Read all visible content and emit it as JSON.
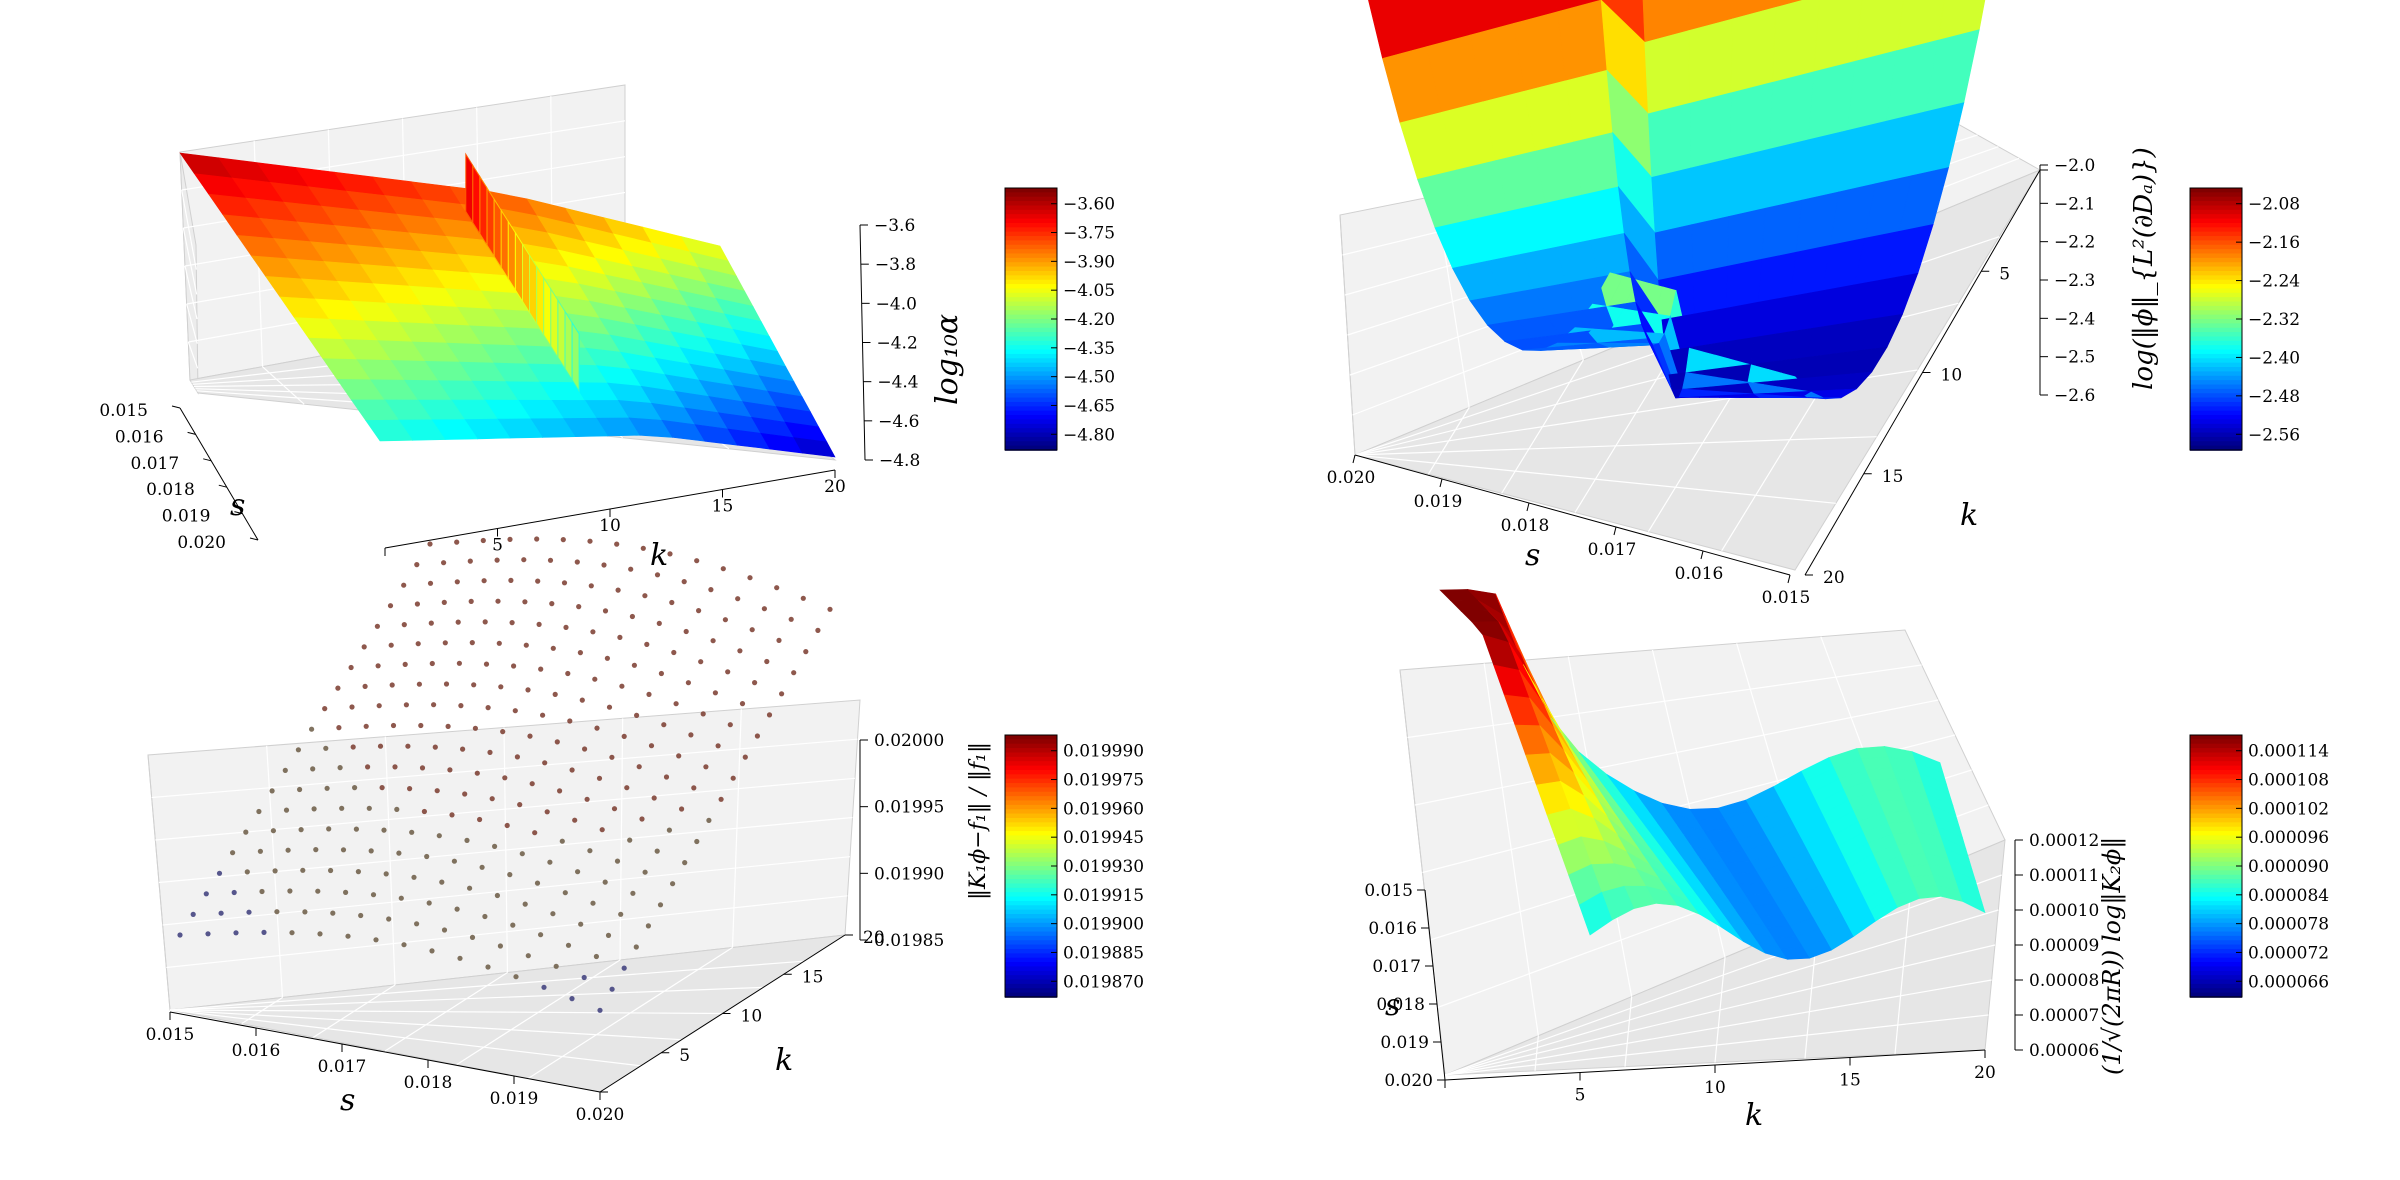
{
  "figure": {
    "layout": "2x2 grid of 3D plots with colorbars"
  },
  "chart_data": [
    {
      "type": "surface",
      "xlabel": "s",
      "ylabel": "k",
      "zlabel": "log₁₀α",
      "x_ticks": [
        "0.015",
        "0.016",
        "0.017",
        "0.018",
        "0.019",
        "0.020"
      ],
      "y_ticks": [
        "5",
        "10",
        "15",
        "20"
      ],
      "z_ticks": [
        "−3.6",
        "−3.8",
        "−4.0",
        "−4.2",
        "−4.4",
        "−4.6",
        "−4.8"
      ],
      "colorbar_ticks": [
        "−3.60",
        "−3.75",
        "−3.90",
        "−4.05",
        "−4.20",
        "−4.35",
        "−4.50",
        "−4.65",
        "−4.80"
      ],
      "colormap": "jet",
      "xlim": [
        0.015,
        0.02
      ],
      "ylim": [
        1,
        20
      ],
      "zlim": [
        -4.85,
        -3.55
      ],
      "description_values": {
        "s": [
          0.015,
          0.02
        ],
        "high_k_low": -3.55,
        "low_k_high": -4.85
      }
    },
    {
      "type": "surface",
      "xlabel": "s",
      "ylabel": "k",
      "zlabel": "log(‖ϕ‖_{L²(∂Dₐ)})",
      "x_ticks": [
        "0.020",
        "0.019",
        "0.018",
        "0.017",
        "0.016",
        "0.015"
      ],
      "y_ticks": [
        "5",
        "10",
        "15",
        "20"
      ],
      "z_ticks": [
        "−2.0",
        "−2.1",
        "−2.2",
        "−2.3",
        "−2.4",
        "−2.5",
        "−2.6"
      ],
      "colorbar_ticks": [
        "−2.08",
        "−2.16",
        "−2.24",
        "−2.32",
        "−2.40",
        "−2.48",
        "−2.56"
      ],
      "colormap": "jet",
      "xlim": [
        0.015,
        0.02
      ],
      "ylim": [
        1,
        20
      ],
      "zlim": [
        -2.6,
        -2.0
      ]
    },
    {
      "type": "scatter",
      "xlabel": "s",
      "ylabel": "k",
      "zlabel": "‖K₁ϕ−f₁‖ / ‖f₁‖",
      "x_ticks": [
        "0.015",
        "0.016",
        "0.017",
        "0.018",
        "0.019",
        "0.020"
      ],
      "y_ticks": [
        "5",
        "10",
        "15",
        "20"
      ],
      "z_ticks": [
        "0.02000",
        "0.01995",
        "0.01990",
        "0.01985"
      ],
      "colorbar_ticks": [
        "0.019990",
        "0.019975",
        "0.019960",
        "0.019945",
        "0.019930",
        "0.019915",
        "0.019900",
        "0.019885",
        "0.019870"
      ],
      "colormap": "jet",
      "xlim": [
        0.015,
        0.02
      ],
      "ylim": [
        1,
        20
      ],
      "zlim": [
        0.01985,
        0.02
      ]
    },
    {
      "type": "surface",
      "xlabel": "s",
      "ylabel": "k",
      "zlabel": "(1/√(2πR)) log‖K₂ϕ‖",
      "x_ticks": [
        "0.015",
        "0.016",
        "0.017",
        "0.018",
        "0.019",
        "0.020"
      ],
      "y_ticks": [
        "5",
        "10",
        "15",
        "20"
      ],
      "z_ticks": [
        "0.00012",
        "0.00011",
        "0.00010",
        "0.00009",
        "0.00008",
        "0.00007",
        "0.00006"
      ],
      "colorbar_ticks": [
        "0.000114",
        "0.000108",
        "0.000102",
        "0.000096",
        "0.000090",
        "0.000084",
        "0.000078",
        "0.000072",
        "0.000066"
      ],
      "colormap": "jet",
      "xlim": [
        0.015,
        0.02
      ],
      "ylim": [
        1,
        20
      ],
      "zlim": [
        6e-05,
        0.00012
      ]
    }
  ]
}
